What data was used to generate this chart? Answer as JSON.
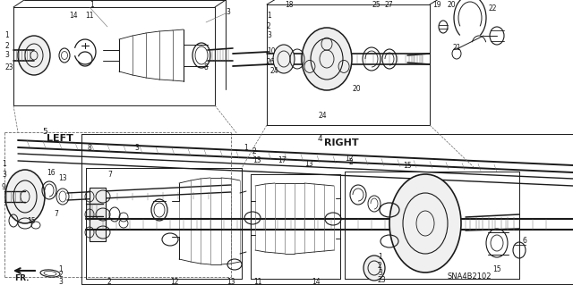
{
  "bg_color": "#ffffff",
  "line_color": "#1a1a1a",
  "gray_color": "#666666",
  "mid_gray": "#999999",
  "figsize": [
    6.4,
    3.19
  ],
  "dpi": 100,
  "diagram_id": "SNA4B2102",
  "left_label": "LEFT",
  "right_label": "RIGHT",
  "left_num": "5",
  "right_num": "4",
  "fr_label": "FR."
}
